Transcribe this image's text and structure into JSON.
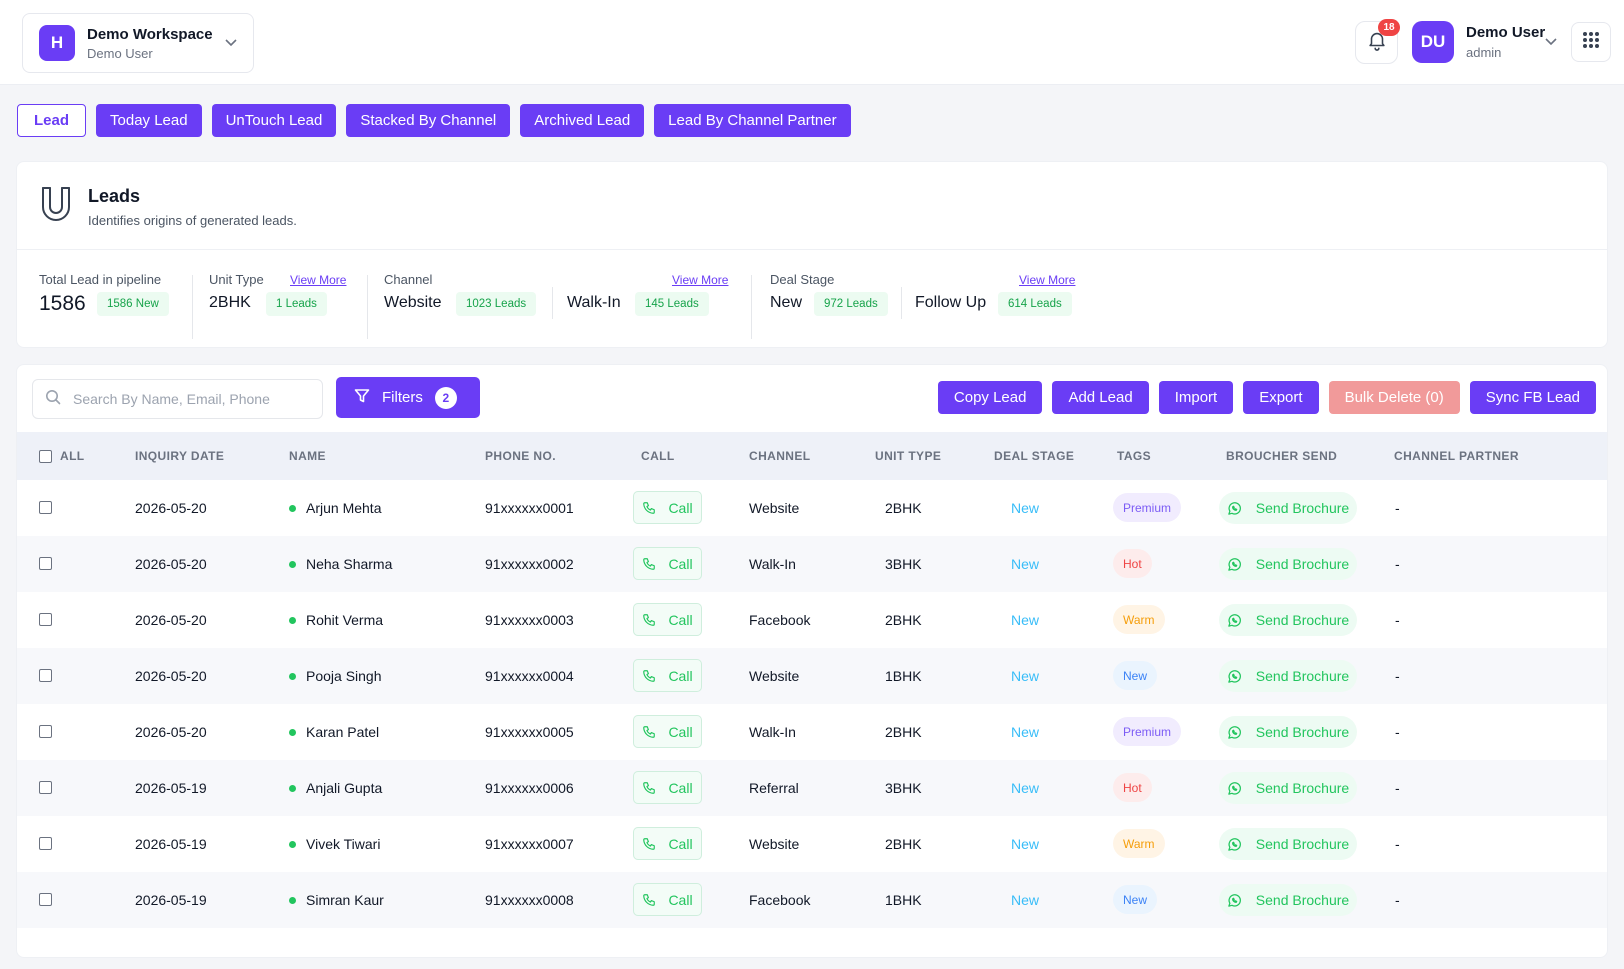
{
  "colors": {
    "primary": "#6a3df5",
    "danger_light": "#f19a9a",
    "badge_red": "#ef4444",
    "success": "#22c55e",
    "stage_blue": "#38bdf8"
  },
  "header": {
    "workspace": {
      "initial": "H",
      "title": "Demo Workspace",
      "subtitle": "Demo User"
    },
    "notifications": {
      "count": "18"
    },
    "user": {
      "initials": "DU",
      "name": "Demo User",
      "role": "admin"
    }
  },
  "tabs": [
    {
      "label": "Lead",
      "active": true
    },
    {
      "label": "Today Lead"
    },
    {
      "label": "UnTouch Lead"
    },
    {
      "label": "Stacked By Channel"
    },
    {
      "label": "Archived Lead"
    },
    {
      "label": "Lead By Channel Partner"
    }
  ],
  "leads_card": {
    "title": "Leads",
    "subtitle": "Identifies origins of generated leads.",
    "total": {
      "label": "Total Lead in pipeline",
      "value": "1586",
      "badge": "1586 New"
    },
    "unit_type": {
      "label": "Unit Type",
      "view_more": "View More",
      "items": [
        {
          "name": "2BHK",
          "badge": "1 Leads"
        }
      ]
    },
    "channel": {
      "label": "Channel",
      "view_more": "View More",
      "items": [
        {
          "name": "Website",
          "badge": "1023 Leads"
        },
        {
          "name": "Walk-In",
          "badge": "145 Leads"
        }
      ]
    },
    "deal_stage": {
      "label": "Deal Stage",
      "view_more": "View More",
      "items": [
        {
          "name": "New",
          "badge": "972 Leads"
        },
        {
          "name": "Follow Up",
          "badge": "614 Leads"
        }
      ]
    }
  },
  "toolbar": {
    "search_placeholder": "Search By Name, Email, Phone",
    "filters_label": "Filters",
    "filters_count": "2",
    "copy_lead": "Copy Lead",
    "add_lead": "Add Lead",
    "import": "Import",
    "export": "Export",
    "bulk_delete": "Bulk Delete (0)",
    "sync_fb": "Sync FB Lead"
  },
  "table": {
    "columns": [
      "ALL",
      "INQUIRY DATE",
      "NAME",
      "PHONE NO.",
      "CALL",
      "CHANNEL",
      "UNIT TYPE",
      "DEAL STAGE",
      "TAGS",
      "BROUCHER SEND",
      "CHANNEL PARTNER"
    ],
    "call_label": "Call",
    "brochure_label": "Send Brochure",
    "rows": [
      {
        "date": "2026-05-20",
        "name": "Arjun Mehta",
        "phone": "91xxxxxx0001",
        "channel": "Website",
        "unit": "2BHK",
        "stage": "New",
        "tag": "Premium",
        "partner": "-"
      },
      {
        "date": "2026-05-20",
        "name": "Neha Sharma",
        "phone": "91xxxxxx0002",
        "channel": "Walk-In",
        "unit": "3BHK",
        "stage": "New",
        "tag": "Hot",
        "partner": "-"
      },
      {
        "date": "2026-05-20",
        "name": "Rohit Verma",
        "phone": "91xxxxxx0003",
        "channel": "Facebook",
        "unit": "2BHK",
        "stage": "New",
        "tag": "Warm",
        "partner": "-"
      },
      {
        "date": "2026-05-20",
        "name": "Pooja Singh",
        "phone": "91xxxxxx0004",
        "channel": "Website",
        "unit": "1BHK",
        "stage": "New",
        "tag": "New",
        "partner": "-"
      },
      {
        "date": "2026-05-20",
        "name": "Karan Patel",
        "phone": "91xxxxxx0005",
        "channel": "Walk-In",
        "unit": "2BHK",
        "stage": "New",
        "tag": "Premium",
        "partner": "-"
      },
      {
        "date": "2026-05-19",
        "name": "Anjali Gupta",
        "phone": "91xxxxxx0006",
        "channel": "Referral",
        "unit": "3BHK",
        "stage": "New",
        "tag": "Hot",
        "partner": "-"
      },
      {
        "date": "2026-05-19",
        "name": "Vivek Tiwari",
        "phone": "91xxxxxx0007",
        "channel": "Website",
        "unit": "2BHK",
        "stage": "New",
        "tag": "Warm",
        "partner": "-"
      },
      {
        "date": "2026-05-19",
        "name": "Simran Kaur",
        "phone": "91xxxxxx0008",
        "channel": "Facebook",
        "unit": "1BHK",
        "stage": "New",
        "tag": "New",
        "partner": "-"
      }
    ]
  }
}
